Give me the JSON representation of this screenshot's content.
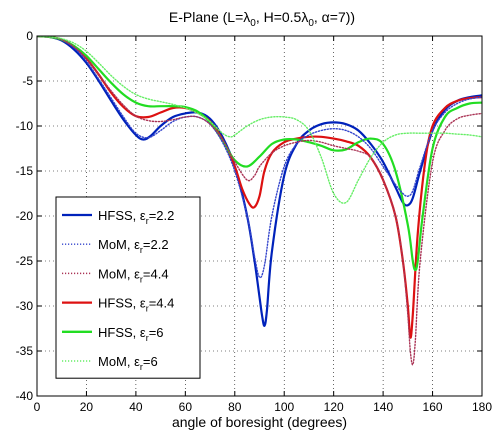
{
  "chart_data": {
    "type": "line",
    "title": {
      "base": "E-Plane (L=λ",
      "sub0": "0",
      "mid": ", H=0.5λ",
      "sub1": "0",
      "tail": ", α=7))"
    },
    "xlabel": "angle of boresight (degrees)",
    "ylabel": "",
    "xlim": [
      0,
      180
    ],
    "ylim": [
      -40,
      0
    ],
    "xticks": [
      0,
      20,
      40,
      60,
      80,
      100,
      120,
      140,
      160,
      180
    ],
    "yticks": [
      0,
      -5,
      -10,
      -15,
      -20,
      -25,
      -30,
      -35,
      -40
    ],
    "grid": true,
    "legend_position": "lower-left",
    "series": [
      {
        "name": "HFSS, εr=2.2",
        "label_main": "HFSS, ε",
        "label_sub": "r",
        "label_tail": "=2.2",
        "color": "#0022bb",
        "style": "solid",
        "x": [
          0,
          5,
          10,
          15,
          20,
          25,
          30,
          35,
          40,
          43,
          46,
          50,
          55,
          60,
          65,
          70,
          75,
          80,
          85,
          88,
          90,
          91,
          92,
          93,
          95,
          100,
          105,
          110,
          115,
          120,
          125,
          130,
          135,
          140,
          145,
          148,
          150,
          152,
          155,
          160,
          165,
          170,
          175,
          180
        ],
        "y": [
          0,
          -0.1,
          -0.5,
          -1.5,
          -3.0,
          -5.0,
          -7.2,
          -9.3,
          -11.0,
          -11.5,
          -11.1,
          -10.0,
          -9.0,
          -8.6,
          -8.5,
          -9.2,
          -11.2,
          -14.5,
          -20.0,
          -25.0,
          -29.0,
          -31.0,
          -32.2,
          -30.5,
          -24.0,
          -15.5,
          -12.0,
          -10.5,
          -9.8,
          -9.6,
          -9.8,
          -10.5,
          -12.0,
          -14.0,
          -16.8,
          -18.5,
          -18.8,
          -18.0,
          -15.0,
          -10.5,
          -8.2,
          -7.2,
          -6.8,
          -6.6
        ]
      },
      {
        "name": "MoM, εr=2.2",
        "label_main": "MoM, ε",
        "label_sub": "r",
        "label_tail": "=2.2",
        "color": "#3344cc",
        "style": "dotted",
        "x": [
          0,
          5,
          10,
          15,
          20,
          25,
          30,
          35,
          40,
          45,
          50,
          55,
          60,
          65,
          70,
          75,
          80,
          85,
          88,
          90,
          92,
          95,
          100,
          105,
          110,
          115,
          120,
          125,
          130,
          135,
          140,
          145,
          148,
          150,
          152,
          155,
          160,
          165,
          170,
          175,
          180
        ],
        "y": [
          0,
          -0.1,
          -0.4,
          -1.3,
          -2.8,
          -4.8,
          -6.9,
          -9.0,
          -10.8,
          -11.3,
          -10.5,
          -9.5,
          -9.0,
          -9.0,
          -9.8,
          -11.8,
          -15.0,
          -20.0,
          -24.5,
          -26.8,
          -25.5,
          -20.0,
          -14.5,
          -12.0,
          -11.0,
          -10.5,
          -10.3,
          -10.5,
          -11.2,
          -12.5,
          -14.5,
          -16.5,
          -17.5,
          -17.8,
          -17.2,
          -14.5,
          -10.5,
          -8.5,
          -7.5,
          -7.0,
          -6.8
        ]
      },
      {
        "name": "MoM, εr=4.4",
        "label_main": "MoM, ε",
        "label_sub": "r",
        "label_tail": "=4.4",
        "color": "#aa3355",
        "style": "dotted",
        "x": [
          0,
          5,
          10,
          15,
          20,
          25,
          30,
          35,
          40,
          45,
          50,
          55,
          60,
          65,
          70,
          75,
          80,
          85,
          88,
          90,
          95,
          100,
          105,
          110,
          115,
          120,
          125,
          130,
          135,
          140,
          145,
          148,
          150,
          151,
          152,
          153,
          155,
          160,
          165,
          170,
          175,
          180
        ],
        "y": [
          0,
          -0.1,
          -0.4,
          -1.2,
          -2.5,
          -4.3,
          -6.1,
          -7.7,
          -8.9,
          -9.4,
          -9.5,
          -9.3,
          -9.0,
          -9.0,
          -9.8,
          -11.5,
          -14.0,
          -16.0,
          -15.5,
          -14.5,
          -13.0,
          -12.2,
          -11.8,
          -11.6,
          -11.8,
          -12.2,
          -12.5,
          -12.8,
          -13.5,
          -16.0,
          -20.0,
          -25.0,
          -31.0,
          -35.0,
          -36.5,
          -34.0,
          -25.0,
          -14.0,
          -10.5,
          -9.2,
          -8.8,
          -8.6
        ]
      },
      {
        "name": "HFSS, εr=4.4",
        "label_main": "HFSS, ",
        "label_main2": "ε",
        "label_sub": "r",
        "label_tail": "=4.4",
        "color": "#dd1111",
        "style": "solid",
        "x": [
          0,
          5,
          10,
          15,
          20,
          25,
          30,
          35,
          40,
          45,
          50,
          55,
          60,
          65,
          70,
          75,
          80,
          83,
          86,
          88,
          90,
          92,
          95,
          100,
          105,
          110,
          115,
          120,
          125,
          130,
          135,
          140,
          145,
          148,
          150,
          151,
          152,
          154,
          157,
          160,
          165,
          170,
          175,
          180
        ],
        "y": [
          0,
          -0.1,
          -0.4,
          -1.2,
          -2.5,
          -4.3,
          -6.3,
          -7.9,
          -8.9,
          -9.0,
          -8.5,
          -8.0,
          -8.0,
          -8.5,
          -9.5,
          -11.5,
          -14.5,
          -17.0,
          -18.7,
          -19.0,
          -17.8,
          -15.0,
          -13.0,
          -11.8,
          -11.4,
          -11.2,
          -11.2,
          -11.4,
          -11.7,
          -12.2,
          -13.5,
          -16.0,
          -20.0,
          -25.0,
          -30.0,
          -33.5,
          -31.0,
          -22.0,
          -14.0,
          -10.0,
          -8.0,
          -7.2,
          -6.9,
          -6.8
        ]
      },
      {
        "name": "HFSS, εr=6",
        "label_main": "HFSS, ε",
        "label_sub": "r",
        "label_tail": "=6",
        "color": "#22dd22",
        "style": "solid",
        "x": [
          0,
          5,
          10,
          15,
          20,
          25,
          30,
          35,
          40,
          45,
          50,
          55,
          60,
          65,
          70,
          75,
          80,
          85,
          90,
          95,
          100,
          105,
          110,
          115,
          120,
          125,
          130,
          135,
          140,
          145,
          150,
          152,
          153,
          154,
          156,
          160,
          165,
          170,
          175,
          180
        ],
        "y": [
          0,
          -0.1,
          -0.4,
          -1.1,
          -2.2,
          -3.7,
          -5.2,
          -6.5,
          -7.4,
          -7.8,
          -7.8,
          -7.8,
          -7.9,
          -8.4,
          -9.6,
          -11.6,
          -13.8,
          -14.5,
          -13.4,
          -12.0,
          -11.5,
          -11.5,
          -11.8,
          -12.2,
          -12.7,
          -12.6,
          -11.8,
          -11.4,
          -12.0,
          -15.0,
          -21.0,
          -25.0,
          -26.0,
          -25.0,
          -20.0,
          -12.5,
          -9.0,
          -8.0,
          -7.5,
          -7.4
        ]
      },
      {
        "name": "MoM, εr=6",
        "label_main": "MoM, ε",
        "label_sub": "r",
        "label_tail": "=6",
        "color": "#66ee66",
        "style": "dotted",
        "x": [
          0,
          5,
          10,
          15,
          20,
          25,
          30,
          35,
          40,
          45,
          50,
          55,
          60,
          65,
          70,
          75,
          78,
          80,
          85,
          90,
          95,
          100,
          105,
          110,
          115,
          120,
          125,
          130,
          135,
          140,
          145,
          150,
          155,
          160,
          165,
          170,
          175,
          180
        ],
        "y": [
          0,
          -0.1,
          -0.3,
          -0.8,
          -1.7,
          -3.0,
          -4.4,
          -5.6,
          -6.5,
          -7.0,
          -7.3,
          -7.6,
          -8.0,
          -8.6,
          -9.5,
          -10.8,
          -11.2,
          -11.0,
          -10.0,
          -9.3,
          -9.0,
          -9.0,
          -9.3,
          -10.5,
          -13.5,
          -17.5,
          -18.5,
          -16.0,
          -13.5,
          -11.8,
          -11.0,
          -10.8,
          -10.8,
          -10.8,
          -10.8,
          -10.9,
          -11.0,
          -11.2
        ]
      }
    ]
  }
}
